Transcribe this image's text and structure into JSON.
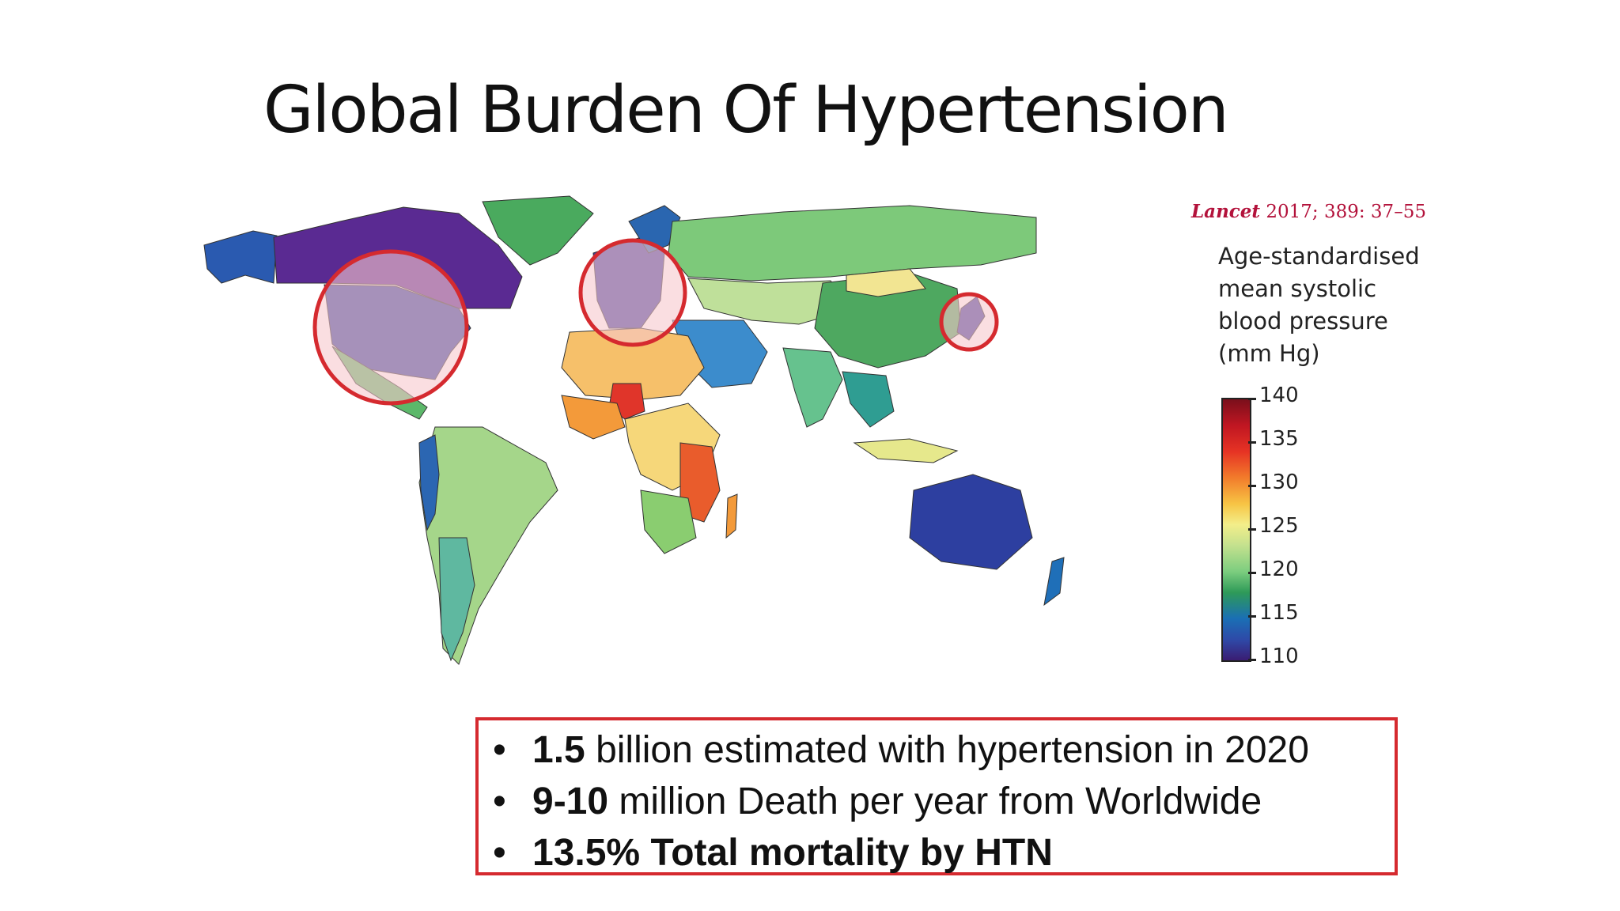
{
  "slide": {
    "title": "Global Burden Of Hypertension"
  },
  "citation": {
    "journal": "Lancet",
    "reference": " 2017; 389: 37–55"
  },
  "legend": {
    "title_lines": [
      "Age-standardised",
      "mean systolic",
      "blood pressure",
      "(mm Hg)"
    ],
    "ticks": [
      "140",
      "135",
      "130",
      "125",
      "120",
      "115",
      "110"
    ],
    "min": 110,
    "max": 140,
    "colors": {
      "high": "#7a0f1b",
      "mid": "#f3ee8a",
      "low": "#3a1c72"
    }
  },
  "highlight_color": "#d52a2f",
  "stats": {
    "bullet": "•",
    "line1_bold": "1.5",
    "line1_rest": " billion estimated with hypertension in 2020",
    "line2_bold": "9-10",
    "line2_rest": " million Death per year from Worldwide",
    "line3_bold": "13.5% Total mortality by HTN"
  }
}
